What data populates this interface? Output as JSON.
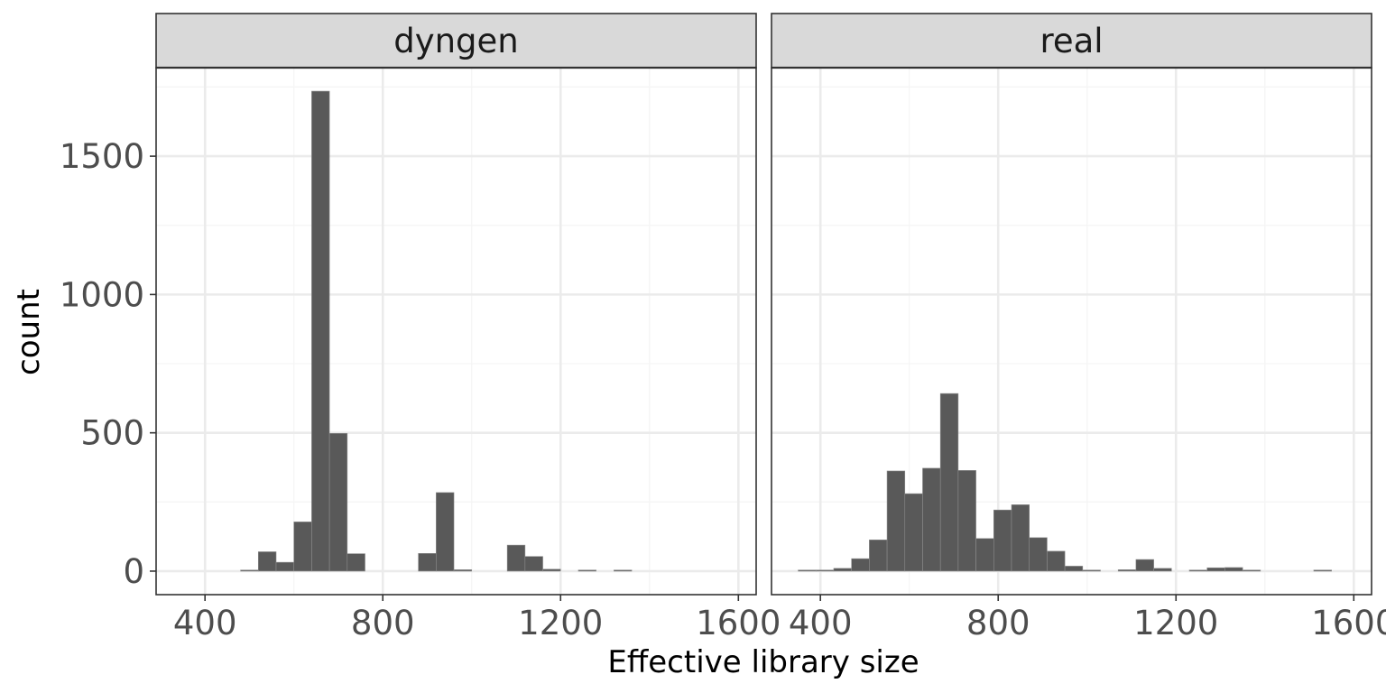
{
  "chart_data": {
    "type": "bar",
    "subtype": "faceted-histogram",
    "xlabel": "Effective library size",
    "ylabel": "count",
    "xlim": [
      290,
      1640
    ],
    "ylim": [
      -85,
      1820
    ],
    "x_ticks": [
      400,
      800,
      1200,
      1600
    ],
    "x_minor_ticks": [
      600,
      1000,
      1400
    ],
    "y_ticks": [
      0,
      500,
      1000,
      1500
    ],
    "y_minor_ticks": [
      250,
      750,
      1250,
      1750
    ],
    "bin_width": 40,
    "grid": true,
    "colors": {
      "bar_fill": "#595959",
      "bar_outline": "#8c8c8c",
      "strip_fill": "#d9d9d9",
      "panel_border": "#333333",
      "grid_major": "#ebebeb",
      "grid_minor": "#f5f5f5"
    },
    "facets": [
      {
        "name": "dyngen",
        "bins": [
          {
            "x0": 480,
            "x1": 520,
            "count": 1
          },
          {
            "x0": 520,
            "x1": 560,
            "count": 70
          },
          {
            "x0": 560,
            "x1": 600,
            "count": 32
          },
          {
            "x0": 600,
            "x1": 640,
            "count": 178
          },
          {
            "x0": 640,
            "x1": 680,
            "count": 1735
          },
          {
            "x0": 680,
            "x1": 720,
            "count": 498
          },
          {
            "x0": 720,
            "x1": 760,
            "count": 63
          },
          {
            "x0": 880,
            "x1": 920,
            "count": 64
          },
          {
            "x0": 920,
            "x1": 960,
            "count": 284
          },
          {
            "x0": 960,
            "x1": 1000,
            "count": 5
          },
          {
            "x0": 1080,
            "x1": 1120,
            "count": 94
          },
          {
            "x0": 1120,
            "x1": 1160,
            "count": 53
          },
          {
            "x0": 1160,
            "x1": 1200,
            "count": 7
          },
          {
            "x0": 1240,
            "x1": 1280,
            "count": 1
          },
          {
            "x0": 1320,
            "x1": 1360,
            "count": 1
          }
        ]
      },
      {
        "name": "real",
        "bins": [
          {
            "x0": 350,
            "x1": 390,
            "count": 1
          },
          {
            "x0": 390,
            "x1": 430,
            "count": 3
          },
          {
            "x0": 430,
            "x1": 470,
            "count": 10
          },
          {
            "x0": 470,
            "x1": 510,
            "count": 45
          },
          {
            "x0": 510,
            "x1": 550,
            "count": 113
          },
          {
            "x0": 550,
            "x1": 590,
            "count": 362
          },
          {
            "x0": 590,
            "x1": 630,
            "count": 280
          },
          {
            "x0": 630,
            "x1": 670,
            "count": 372
          },
          {
            "x0": 670,
            "x1": 710,
            "count": 642
          },
          {
            "x0": 710,
            "x1": 750,
            "count": 364
          },
          {
            "x0": 750,
            "x1": 790,
            "count": 118
          },
          {
            "x0": 790,
            "x1": 830,
            "count": 221
          },
          {
            "x0": 830,
            "x1": 870,
            "count": 240
          },
          {
            "x0": 870,
            "x1": 910,
            "count": 121
          },
          {
            "x0": 910,
            "x1": 950,
            "count": 72
          },
          {
            "x0": 950,
            "x1": 990,
            "count": 18
          },
          {
            "x0": 990,
            "x1": 1030,
            "count": 3
          },
          {
            "x0": 1070,
            "x1": 1110,
            "count": 5
          },
          {
            "x0": 1110,
            "x1": 1150,
            "count": 42
          },
          {
            "x0": 1150,
            "x1": 1190,
            "count": 10
          },
          {
            "x0": 1230,
            "x1": 1270,
            "count": 2
          },
          {
            "x0": 1270,
            "x1": 1310,
            "count": 12
          },
          {
            "x0": 1310,
            "x1": 1350,
            "count": 13
          },
          {
            "x0": 1350,
            "x1": 1390,
            "count": 2
          },
          {
            "x0": 1510,
            "x1": 1550,
            "count": 1
          }
        ]
      }
    ]
  }
}
